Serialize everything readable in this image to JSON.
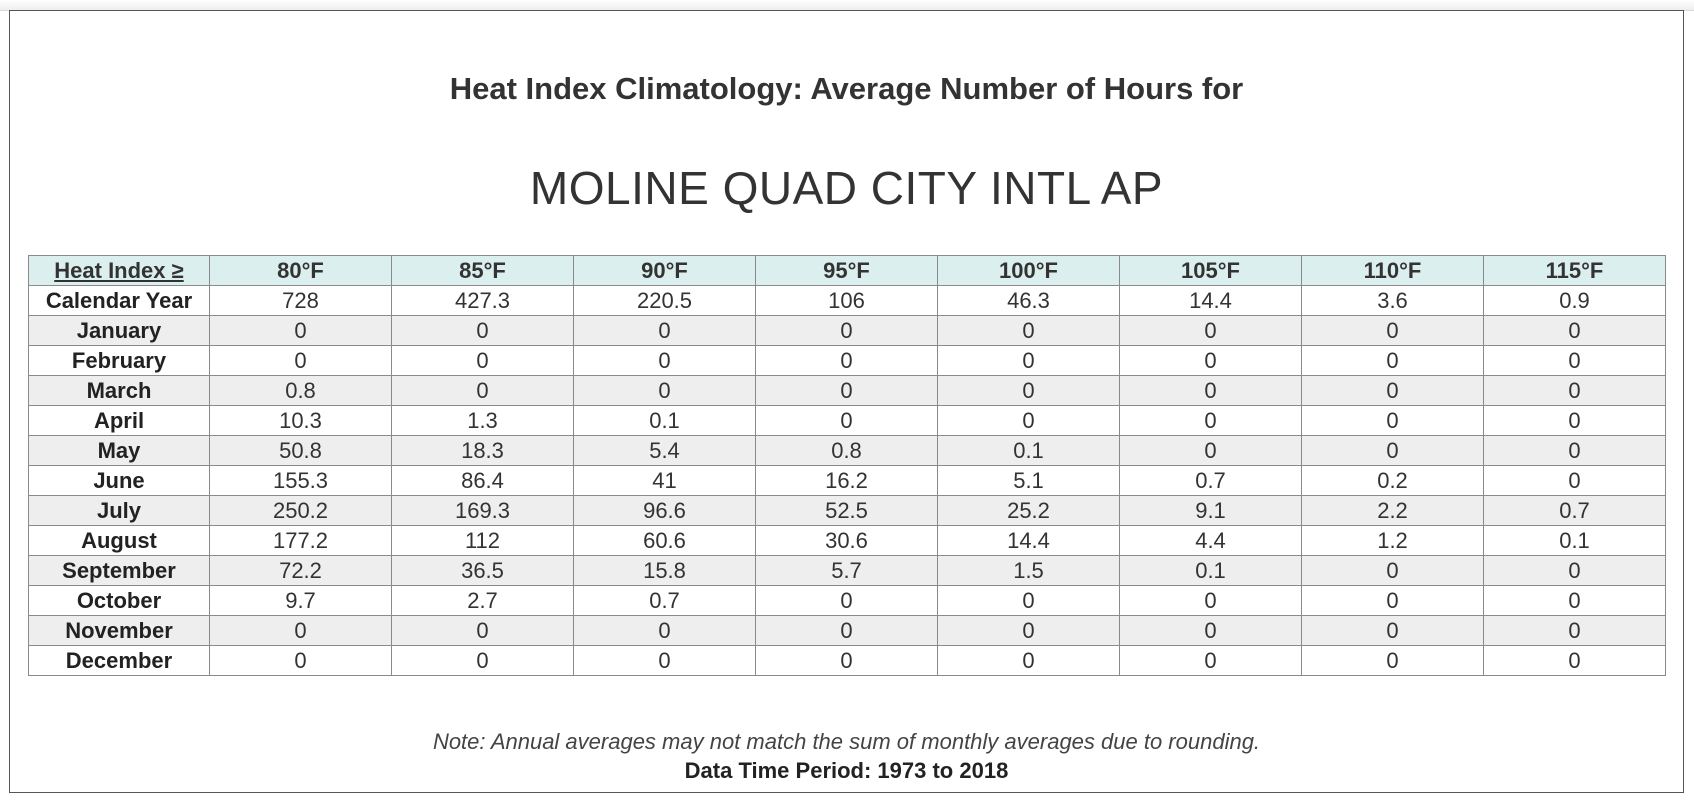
{
  "title": "Heat Index Climatology: Average Number of Hours for",
  "station": "MOLINE QUAD CITY INTL AP",
  "table": {
    "row_header_label": "Heat Index ≥",
    "columns": [
      "80°F",
      "85°F",
      "90°F",
      "95°F",
      "100°F",
      "105°F",
      "110°F",
      "115°F"
    ],
    "rows": [
      {
        "label": "Calendar Year",
        "values": [
          "728",
          "427.3",
          "220.5",
          "106",
          "46.3",
          "14.4",
          "3.6",
          "0.9"
        ]
      },
      {
        "label": "January",
        "values": [
          "0",
          "0",
          "0",
          "0",
          "0",
          "0",
          "0",
          "0"
        ]
      },
      {
        "label": "February",
        "values": [
          "0",
          "0",
          "0",
          "0",
          "0",
          "0",
          "0",
          "0"
        ]
      },
      {
        "label": "March",
        "values": [
          "0.8",
          "0",
          "0",
          "0",
          "0",
          "0",
          "0",
          "0"
        ]
      },
      {
        "label": "April",
        "values": [
          "10.3",
          "1.3",
          "0.1",
          "0",
          "0",
          "0",
          "0",
          "0"
        ]
      },
      {
        "label": "May",
        "values": [
          "50.8",
          "18.3",
          "5.4",
          "0.8",
          "0.1",
          "0",
          "0",
          "0"
        ]
      },
      {
        "label": "June",
        "values": [
          "155.3",
          "86.4",
          "41",
          "16.2",
          "5.1",
          "0.7",
          "0.2",
          "0"
        ]
      },
      {
        "label": "July",
        "values": [
          "250.2",
          "169.3",
          "96.6",
          "52.5",
          "25.2",
          "9.1",
          "2.2",
          "0.7"
        ]
      },
      {
        "label": "August",
        "values": [
          "177.2",
          "112",
          "60.6",
          "30.6",
          "14.4",
          "4.4",
          "1.2",
          "0.1"
        ]
      },
      {
        "label": "September",
        "values": [
          "72.2",
          "36.5",
          "15.8",
          "5.7",
          "1.5",
          "0.1",
          "0",
          "0"
        ]
      },
      {
        "label": "October",
        "values": [
          "9.7",
          "2.7",
          "0.7",
          "0",
          "0",
          "0",
          "0",
          "0"
        ]
      },
      {
        "label": "November",
        "values": [
          "0",
          "0",
          "0",
          "0",
          "0",
          "0",
          "0",
          "0"
        ]
      },
      {
        "label": "December",
        "values": [
          "0",
          "0",
          "0",
          "0",
          "0",
          "0",
          "0",
          "0"
        ]
      }
    ]
  },
  "note": "Note: Annual averages may not match the sum of monthly averages due to rounding.",
  "period": "Data Time Period: 1973 to 2018",
  "colors": {
    "header_bg": "#dcefef",
    "stripe_bg": "#eeeeee",
    "border": "#8a8a8a"
  }
}
